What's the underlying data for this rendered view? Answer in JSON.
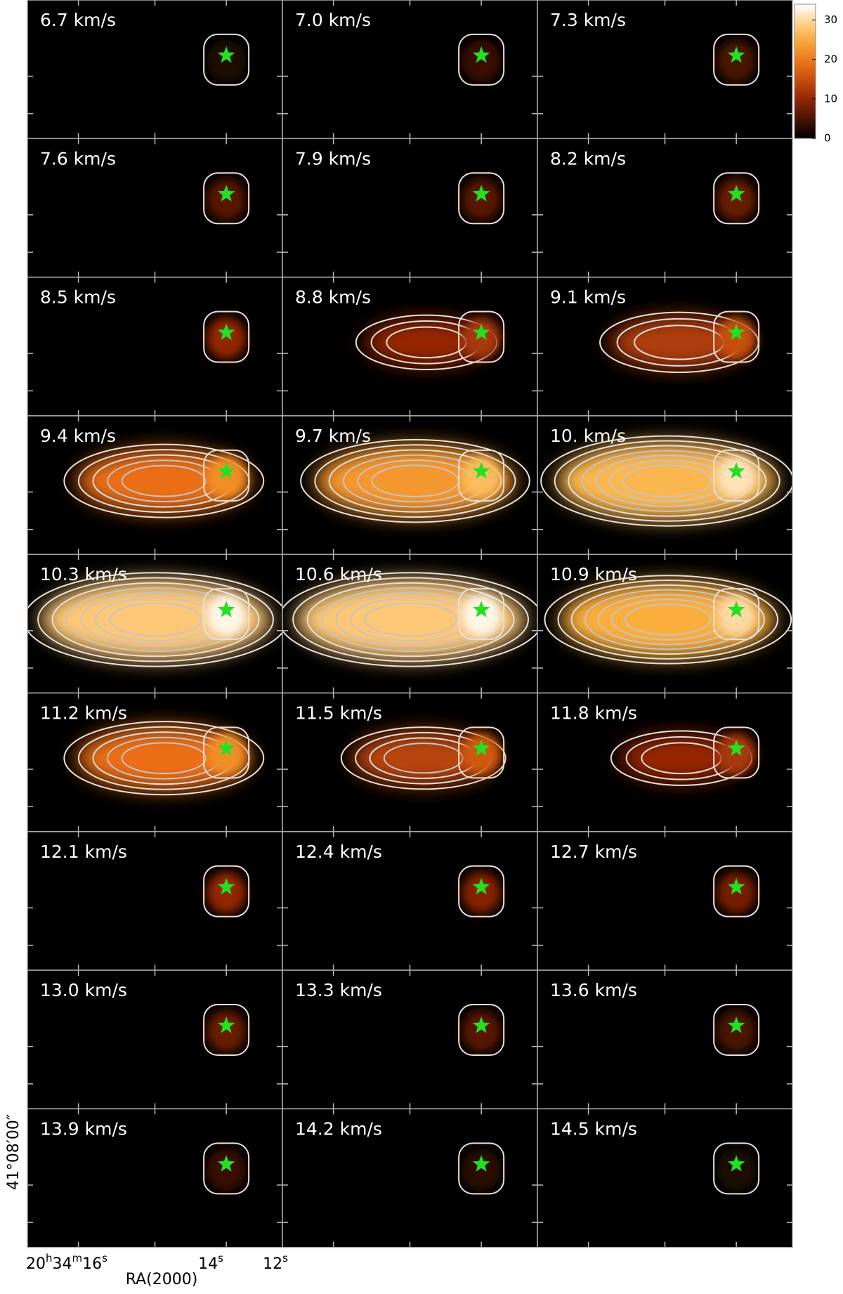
{
  "panels": [
    {
      "label": "6.7 km/s",
      "peak": 2
    },
    {
      "label": "7.0 km/s",
      "peak": 4
    },
    {
      "label": "7.3 km/s",
      "peak": 5
    },
    {
      "label": "7.6 km/s",
      "peak": 6
    },
    {
      "label": "7.9 km/s",
      "peak": 6
    },
    {
      "label": "8.2 km/s",
      "peak": 7
    },
    {
      "label": "8.5 km/s",
      "peak": 10
    },
    {
      "label": "8.8 km/s",
      "peak": 12
    },
    {
      "label": "9.1 km/s",
      "peak": 15
    },
    {
      "label": "9.4 km/s",
      "peak": 22
    },
    {
      "label": "9.7 km/s",
      "peak": 27
    },
    {
      "label": "10. km/s",
      "peak": 31
    },
    {
      "label": "10.3 km/s",
      "peak": 33
    },
    {
      "label": "10.6 km/s",
      "peak": 33
    },
    {
      "label": "10.9 km/s",
      "peak": 30
    },
    {
      "label": "11.2 km/s",
      "peak": 22
    },
    {
      "label": "11.5 km/s",
      "peak": 16
    },
    {
      "label": "11.8 km/s",
      "peak": 12
    },
    {
      "label": "12.1 km/s",
      "peak": 10
    },
    {
      "label": "12.4 km/s",
      "peak": 9
    },
    {
      "label": "12.7 km/s",
      "peak": 8
    },
    {
      "label": "13.0 km/s",
      "peak": 7
    },
    {
      "label": "13.3 km/s",
      "peak": 6
    },
    {
      "label": "13.6 km/s",
      "peak": 5
    },
    {
      "label": "13.9 km/s",
      "peak": 4
    },
    {
      "label": "14.2 km/s",
      "peak": 3
    },
    {
      "label": "14.5 km/s",
      "peak": 2
    }
  ],
  "colorbar": {
    "lim": [
      0,
      34
    ],
    "ticks": [
      0,
      10,
      20,
      30
    ]
  },
  "axes": {
    "dec_label": "41°08′00″",
    "ra_ticks": [
      [
        "20",
        "h",
        "34",
        "m",
        "16",
        "s"
      ],
      [
        "14",
        "s"
      ],
      [
        "12",
        "s"
      ]
    ],
    "ra_label": "RA(2000)"
  }
}
